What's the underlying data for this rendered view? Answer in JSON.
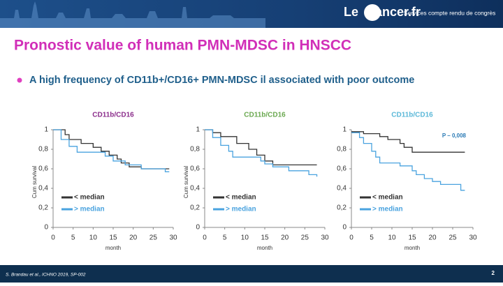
{
  "header": {
    "logo_le": "Le",
    "logo_cancer": "Cancer.fr",
    "tagline": "Services compte rendu de congrès"
  },
  "title": "Pronostic value of human PMN-MDSC in HNSCC",
  "bullet": "A high frequency of CD11b+/CD16+ PMN-MDSC il associated with poor outcome",
  "footer": {
    "citation": "S. Brandau et al., ICHNO 2019, SP-002",
    "page": "2"
  },
  "chart_data": [
    {
      "type": "line",
      "step": true,
      "title": "CD11b/CD16",
      "title_color": "#8b2d8b",
      "xlabel": "month",
      "ylabel": "Cum survival",
      "xlim": [
        0,
        30
      ],
      "ylim": [
        0,
        1
      ],
      "xticks": [
        0,
        5,
        10,
        15,
        20,
        25,
        30
      ],
      "yticks": [
        0,
        {
          "value": 0.2,
          "label": "0,2"
        },
        {
          "value": 0.4,
          "label": "0,4"
        },
        {
          "value": 0.6,
          "label": "0,6"
        },
        {
          "value": 0.8,
          "label": "0,8"
        },
        1
      ],
      "series": [
        {
          "name": "< median",
          "color": "#333333",
          "x": [
            0,
            3,
            4,
            7,
            10,
            12,
            14,
            16,
            17,
            19,
            22,
            29
          ],
          "values": [
            1,
            0.95,
            0.9,
            0.86,
            0.82,
            0.78,
            0.74,
            0.7,
            0.66,
            0.62,
            0.6,
            0.6
          ]
        },
        {
          "name": "> median",
          "color": "#4aa3df",
          "x": [
            0,
            2,
            4,
            6,
            13,
            15,
            18,
            22,
            28,
            29
          ],
          "values": [
            1,
            0.9,
            0.83,
            0.77,
            0.73,
            0.68,
            0.64,
            0.6,
            0.57,
            0.57
          ]
        }
      ]
    },
    {
      "type": "line",
      "step": true,
      "title": "CD11b/CD16",
      "title_color": "#6aa84f",
      "xlabel": "month",
      "ylabel": "Cum survival",
      "xlim": [
        0,
        30
      ],
      "ylim": [
        0,
        1
      ],
      "xticks": [
        0,
        5,
        10,
        15,
        20,
        25,
        30
      ],
      "yticks": [
        0,
        {
          "value": 0.2,
          "label": "0,2"
        },
        {
          "value": 0.4,
          "label": "0,4"
        },
        {
          "value": 0.6,
          "label": "0,6"
        },
        {
          "value": 0.8,
          "label": "0,8"
        },
        1
      ],
      "series": [
        {
          "name": "< median",
          "color": "#333333",
          "x": [
            0,
            2,
            4,
            8,
            11,
            13,
            15,
            17,
            28
          ],
          "values": [
            1,
            0.97,
            0.93,
            0.86,
            0.8,
            0.74,
            0.68,
            0.64,
            0.64
          ]
        },
        {
          "name": "> median",
          "color": "#4aa3df",
          "x": [
            0,
            2,
            4,
            6,
            7,
            14,
            15,
            17,
            21,
            26,
            28
          ],
          "values": [
            1,
            0.92,
            0.84,
            0.78,
            0.72,
            0.68,
            0.65,
            0.62,
            0.58,
            0.54,
            0.52
          ]
        }
      ]
    },
    {
      "type": "line",
      "step": true,
      "title": "CD11b/CD16",
      "title_color": "#5bb8d8",
      "xlabel": "month",
      "annotation": "P – 0,008",
      "xlim": [
        0,
        30
      ],
      "ylim": [
        0,
        1
      ],
      "xticks": [
        0,
        5,
        10,
        15,
        20,
        25,
        30
      ],
      "yticks": [
        0,
        {
          "value": 0.2,
          "label": "0,2"
        },
        {
          "value": 0.4,
          "label": "0,4"
        },
        {
          "value": 0.6,
          "label": "0,6"
        },
        {
          "value": 0.8,
          "label": "0,8"
        },
        1
      ],
      "series": [
        {
          "name": "< median",
          "color": "#333333",
          "x": [
            0,
            3,
            7,
            9,
            12,
            13,
            15,
            28
          ],
          "values": [
            0.98,
            0.96,
            0.93,
            0.9,
            0.86,
            0.82,
            0.77,
            0.77
          ]
        },
        {
          "name": "> median",
          "color": "#4aa3df",
          "x": [
            0,
            2,
            3,
            5,
            6,
            7,
            12,
            15,
            16,
            18,
            20,
            22,
            27,
            28
          ],
          "values": [
            0.97,
            0.92,
            0.86,
            0.78,
            0.72,
            0.66,
            0.63,
            0.58,
            0.54,
            0.5,
            0.47,
            0.44,
            0.38,
            0.38
          ]
        }
      ]
    }
  ]
}
